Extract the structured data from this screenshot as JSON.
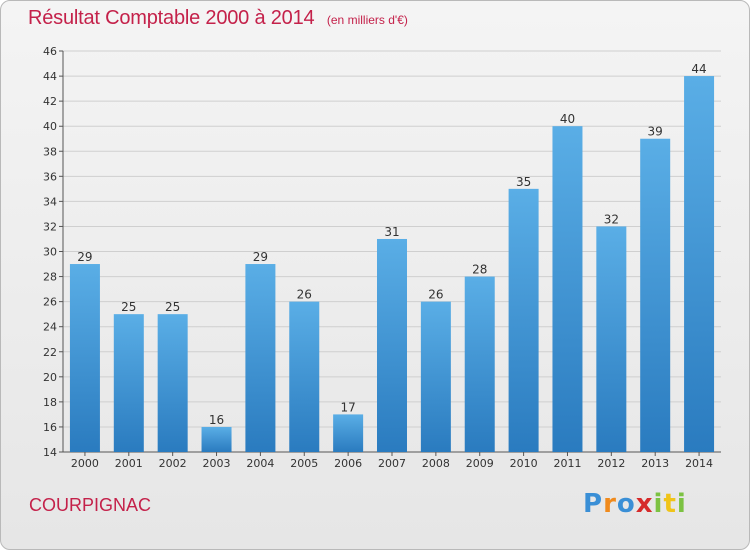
{
  "header": {
    "title": "Résultat Comptable 2000 à 2014",
    "subtitle": "(en milliers d'€)"
  },
  "footer": {
    "commune": "COURPIGNAC",
    "brand": "Proxiti"
  },
  "colors": {
    "title": "#c4214a",
    "bar_top": "#5aaee6",
    "bar_bottom": "#2a7bbf",
    "grid": "#cfcfcf"
  },
  "chart_data": {
    "type": "bar",
    "title": "Résultat Comptable 2000 à 2014",
    "subtitle": "(en milliers d'€)",
    "categories": [
      "2000",
      "2001",
      "2002",
      "2003",
      "2004",
      "2005",
      "2006",
      "2007",
      "2008",
      "2009",
      "2010",
      "2011",
      "2012",
      "2013",
      "2014"
    ],
    "values": [
      29,
      25,
      25,
      16,
      29,
      26,
      17,
      31,
      26,
      28,
      35,
      40,
      32,
      39,
      44
    ],
    "ylim": [
      14,
      46
    ],
    "yticks": [
      14,
      16,
      18,
      20,
      22,
      24,
      26,
      28,
      30,
      32,
      34,
      36,
      38,
      40,
      42,
      44,
      46
    ],
    "grid": true,
    "data_labels": true
  }
}
